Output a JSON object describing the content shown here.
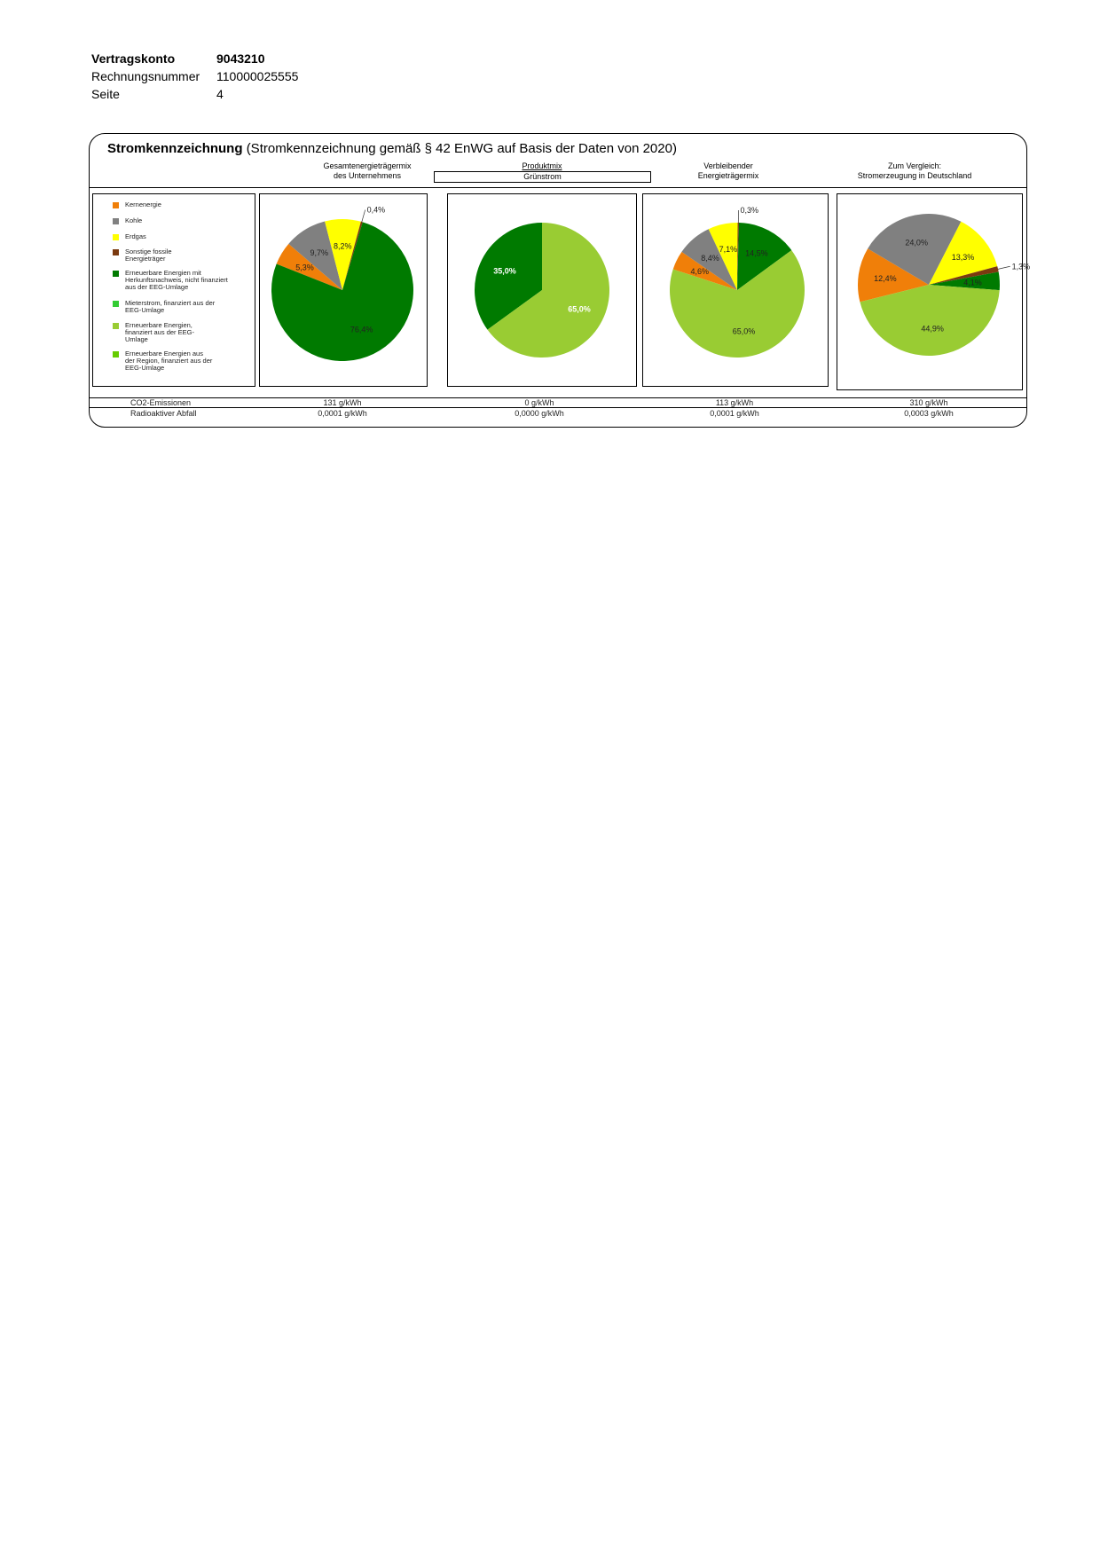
{
  "header": {
    "contract_label": "Vertragskonto",
    "contract_value": "9043210",
    "invoice_label": "Rechnungsnummer",
    "invoice_value": "110000025555",
    "page_label": "Seite",
    "page_value": "4"
  },
  "section": {
    "title_bold": "Stromkennzeichnung",
    "title_rest": "(Stromkennzeichnung gemäß § 42 EnWG auf Basis der Daten von 2020)"
  },
  "columns": {
    "company_line1": "Gesamtenergieträgermix",
    "company_line2": "des Unternehmens",
    "product_line1": "Produktmix",
    "product_line2": "Grünstrom",
    "remaining_line1": "Verbleibender",
    "remaining_line2": "Energieträgermix",
    "germany_line1": "Zum Vergleich:",
    "germany_line2": "Stromerzeugung in Deutschland"
  },
  "legend": [
    {
      "label": "Kernenergie",
      "color": "#f07f09"
    },
    {
      "label": "Kohle",
      "color": "#808080"
    },
    {
      "label": "Erdgas",
      "color": "#ffff00"
    },
    {
      "label": "Sonstige fossile Energieträger",
      "color": "#7b3a10"
    },
    {
      "label": "Erneuerbare Energien mit Herkunftsnachweis, nicht finanziert aus der EEG-Umlage",
      "color": "#007a00"
    },
    {
      "label": "Mieterstrom, finanziert aus der EEG-Umlage",
      "color": "#33cc33"
    },
    {
      "label": "Erneuerbare Energien, finanziert aus der EEG-Umlage",
      "color": "#99cc33"
    },
    {
      "label": "Erneuerbare Energien aus der Region, finanziert aus der EEG-Umlage",
      "color": "#66cc00"
    }
  ],
  "chart_data": [
    {
      "type": "pie",
      "title": "Gesamtenergieträgermix des Unternehmens",
      "categories": [
        "Kernenergie",
        "Kohle",
        "Erdgas",
        "Sonstige fossile Energieträger",
        "Erneuerbare Energien mit Herkunftsnachweis, nicht finanziert aus der EEG-Umlage"
      ],
      "values": [
        5.3,
        9.7,
        8.2,
        0.4,
        76.4
      ],
      "labels": [
        "5,3%",
        "9,7%",
        "8,2%",
        "0,4%",
        "76,4%"
      ]
    },
    {
      "type": "pie",
      "title": "Produktmix Grünstrom",
      "categories": [
        "Erneuerbare Energien mit Herkunftsnachweis, nicht finanziert aus der EEG-Umlage",
        "Erneuerbare Energien, finanziert aus der EEG-Umlage"
      ],
      "values": [
        35.0,
        65.0
      ],
      "labels": [
        "35,0%",
        "65,0%"
      ]
    },
    {
      "type": "pie",
      "title": "Verbleibender Energieträgermix",
      "categories": [
        "Kernenergie",
        "Kohle",
        "Erdgas",
        "Sonstige fossile Energieträger",
        "Erneuerbare Energien mit Herkunftsnachweis, nicht finanziert aus der EEG-Umlage",
        "Erneuerbare Energien, finanziert aus der EEG-Umlage"
      ],
      "values": [
        4.6,
        8.4,
        7.1,
        0.3,
        14.5,
        65.0
      ],
      "labels": [
        "4,6%",
        "8,4%",
        "7,1%",
        "0,3%",
        "14,5%",
        "65,0%"
      ]
    },
    {
      "type": "pie",
      "title": "Zum Vergleich: Stromerzeugung in Deutschland",
      "categories": [
        "Kernenergie",
        "Kohle",
        "Erdgas",
        "Sonstige fossile Energieträger",
        "Erneuerbare Energien mit Herkunftsnachweis, nicht finanziert aus der EEG-Umlage",
        "Erneuerbare Energien, finanziert aus der EEG-Umlage"
      ],
      "values": [
        12.4,
        24.0,
        13.3,
        1.3,
        4.1,
        44.9
      ],
      "labels": [
        "12,4%",
        "24,0%",
        "13,3%",
        "1,3%",
        "4,1%",
        "44,9%"
      ]
    }
  ],
  "footer": {
    "co2_label": "CO2-Emissionen",
    "waste_label": "Radioaktiver Abfall",
    "co2_values": [
      "131 g/kWh",
      "0 g/kWh",
      "113 g/kWh",
      "310 g/kWh"
    ],
    "waste_values": [
      "0,0001 g/kWh",
      "0,0000 g/kWh",
      "0,0001 g/kWh",
      "0,0003 g/kWh"
    ]
  }
}
